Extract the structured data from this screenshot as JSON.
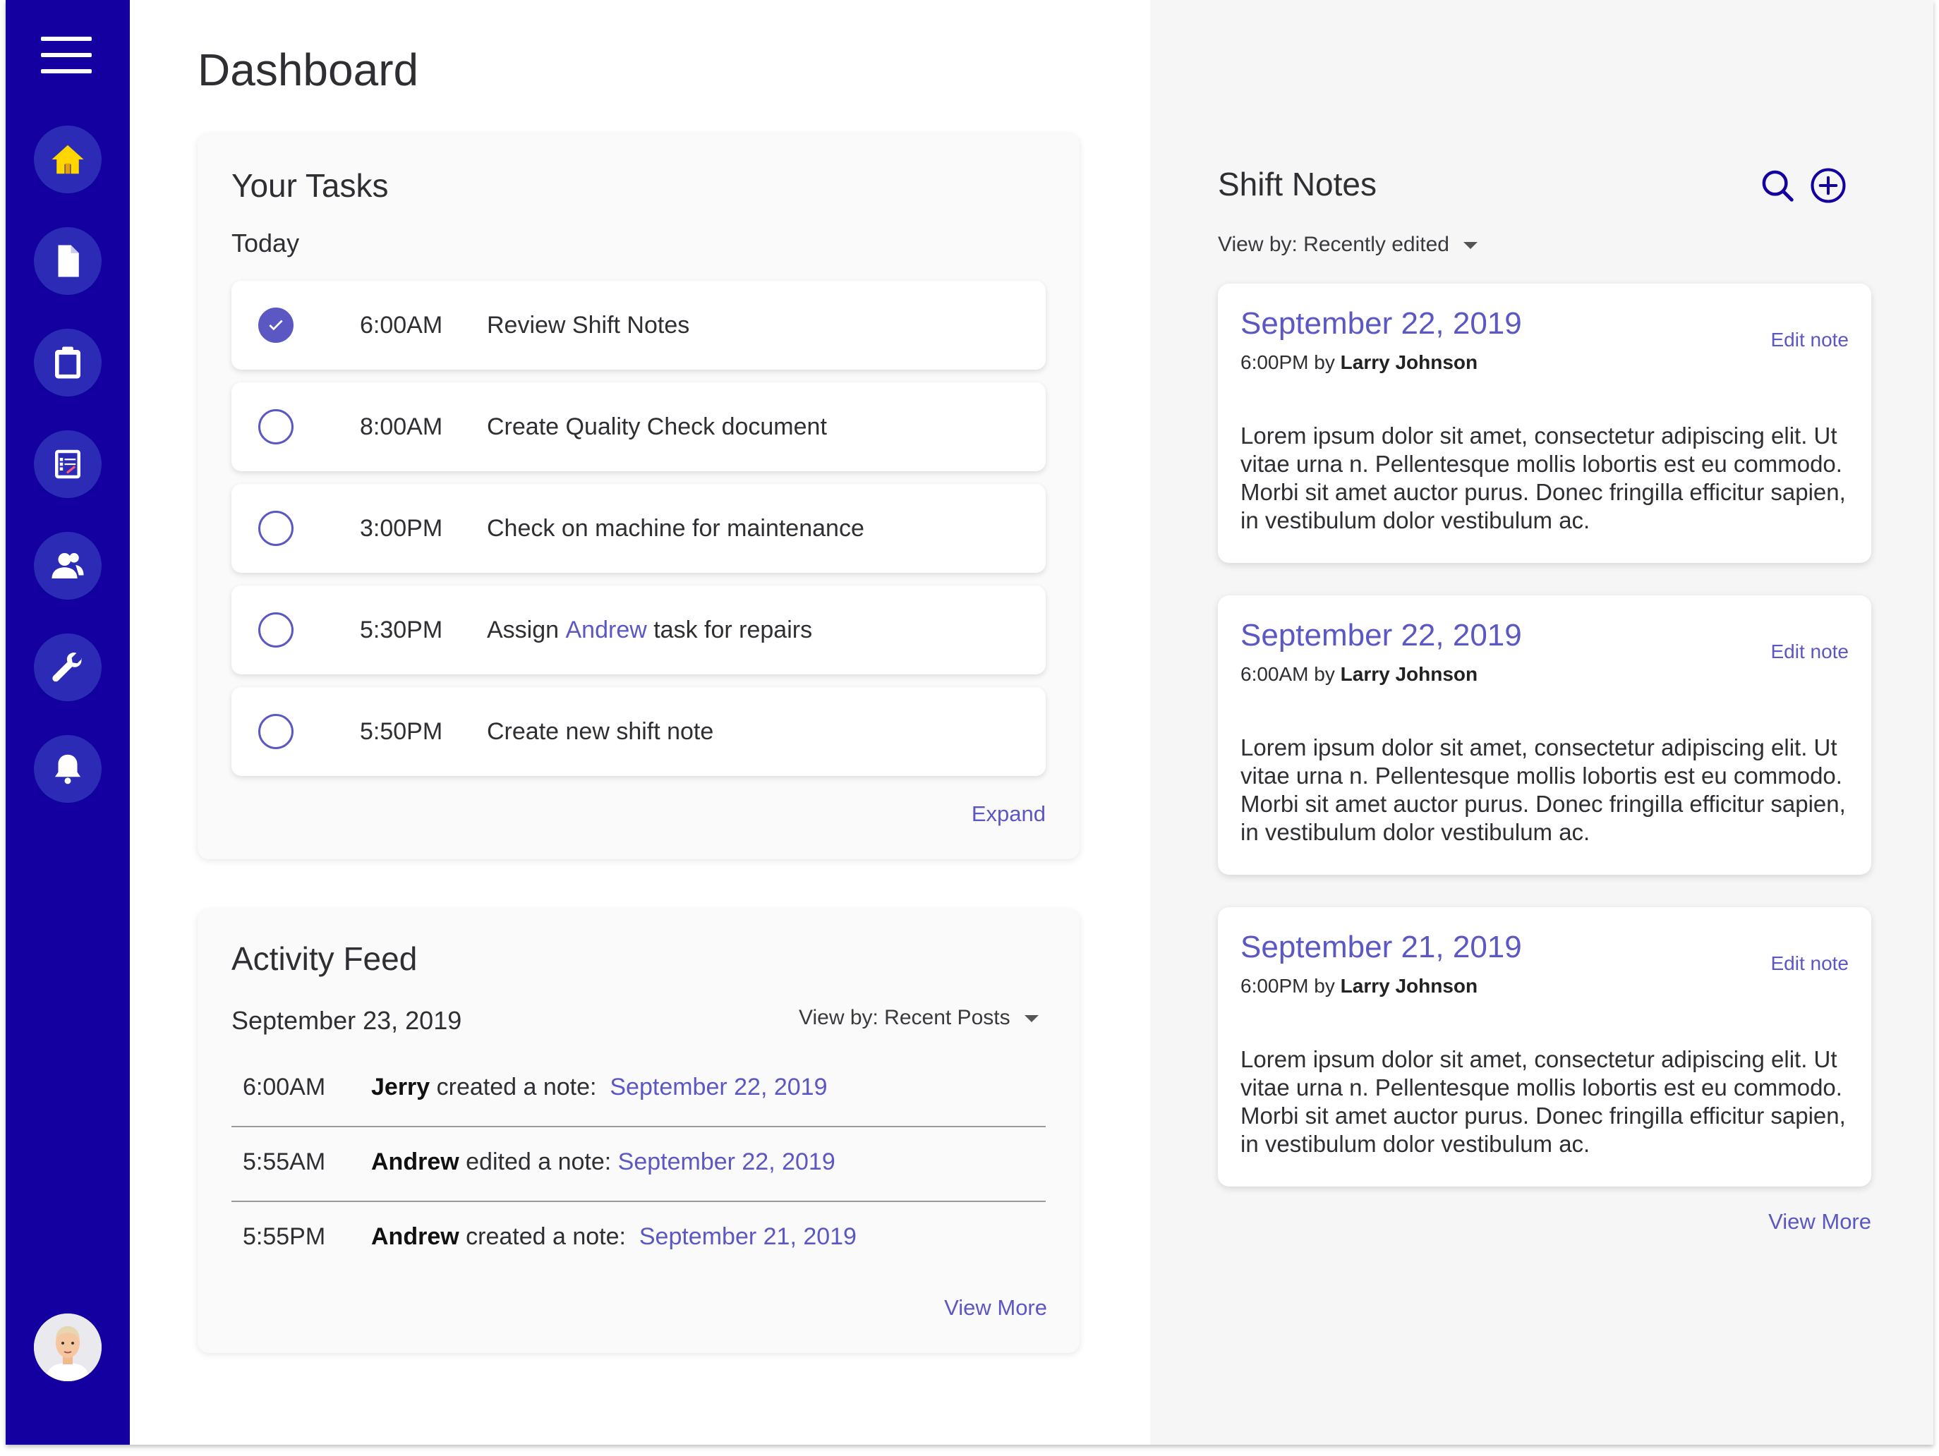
{
  "page": {
    "title": "Dashboard"
  },
  "sidebar": {
    "items": [
      {
        "name": "home",
        "icon": "home-icon",
        "active": true
      },
      {
        "name": "documents",
        "icon": "document-icon"
      },
      {
        "name": "clipboard",
        "icon": "clipboard-icon"
      },
      {
        "name": "reports",
        "icon": "form-icon"
      },
      {
        "name": "users",
        "icon": "users-icon"
      },
      {
        "name": "maintenance",
        "icon": "wrench-icon"
      },
      {
        "name": "notifications",
        "icon": "bell-icon"
      }
    ],
    "accent_color": "#1400a0",
    "active_icon_color": "#ffd600"
  },
  "tasks": {
    "title": "Your Tasks",
    "day_label": "Today",
    "expand_label": "Expand",
    "items": [
      {
        "time": "6:00AM",
        "label": "Review Shift Notes",
        "done": true
      },
      {
        "time": "8:00AM",
        "label": "Create Quality Check document",
        "done": false
      },
      {
        "time": "3:00PM",
        "label": "Check on machine for maintenance",
        "done": false
      },
      {
        "time": "5:30PM",
        "label_pre": "Assign ",
        "label_link": "Andrew",
        "label_post": " task for repairs",
        "done": false
      },
      {
        "time": "5:50PM",
        "label": "Create new shift note",
        "done": false
      }
    ]
  },
  "activity": {
    "title": "Activity Feed",
    "date": "September 23, 2019",
    "view_by": "View by: Recent Posts",
    "view_more": "View More",
    "items": [
      {
        "time": "6:00AM",
        "actor": "Jerry",
        "action": " created a note:  ",
        "link": "September 22, 2019"
      },
      {
        "time": "5:55AM",
        "actor": "Andrew",
        "action": " edited a note: ",
        "link": "September 22, 2019"
      },
      {
        "time": "5:55PM",
        "actor": "Andrew",
        "action": " created a note:  ",
        "link": "September 21, 2019"
      }
    ]
  },
  "notes": {
    "title": "Shift Notes",
    "view_by": "View by: Recently edited",
    "view_more": "View More",
    "edit_label": "Edit note",
    "by_label": " by ",
    "items": [
      {
        "date": "September 22, 2019",
        "time": "6:00PM",
        "author": "Larry Johnson",
        "body": "Lorem ipsum dolor sit amet, consectetur adipiscing elit. Ut vitae urna n. Pellentesque mollis lobortis est eu commodo. Morbi sit amet auctor purus. Donec fringilla efficitur sapien, in vestibulum dolor vestibulum ac."
      },
      {
        "date": "September 22, 2019",
        "time": "6:00AM",
        "author": "Larry Johnson",
        "body": "Lorem ipsum dolor sit amet, consectetur adipiscing elit. Ut vitae urna n. Pellentesque mollis lobortis est eu commodo. Morbi sit amet auctor purus. Donec fringilla efficitur sapien, in vestibulum dolor vestibulum ac."
      },
      {
        "date": "September 21, 2019",
        "time": "6:00PM",
        "author": "Larry Johnson",
        "body": "Lorem ipsum dolor sit amet, consectetur adipiscing elit. Ut vitae urna n. Pellentesque mollis lobortis est eu commodo. Morbi sit amet auctor purus. Donec fringilla efficitur sapien, in vestibulum dolor vestibulum ac."
      }
    ]
  }
}
